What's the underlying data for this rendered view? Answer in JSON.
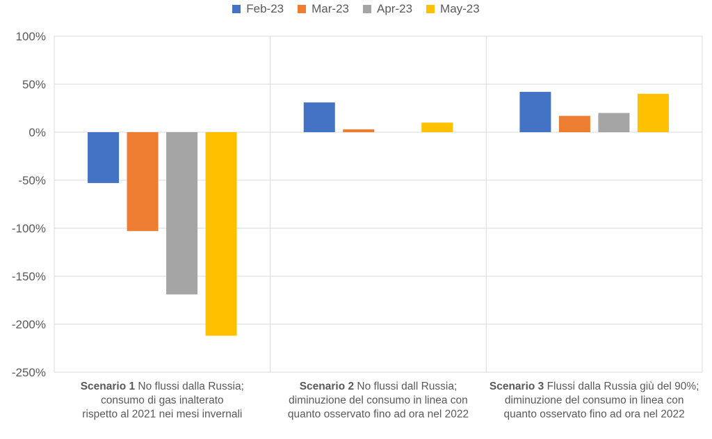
{
  "chart_data": {
    "type": "bar",
    "categories": [
      {
        "bold": "Scenario 1",
        "lines": [
          " No flussi dalla Russia;",
          "consumo di gas inalterato",
          "rispetto al 2021 nei mesi invernali"
        ]
      },
      {
        "bold": "Scenario 2",
        "lines": [
          " No flussi dall Russia;",
          "diminuzione del consumo in linea con",
          "quanto osservato fino ad ora nel 2022"
        ]
      },
      {
        "bold": "Scenario 3",
        "lines": [
          " Flussi dalla Russia giù del 90%;",
          "diminuzione del consumo in linea con",
          "quanto osservato fino ad ora nel 2022"
        ]
      }
    ],
    "series": [
      {
        "name": "Feb-23",
        "color": "#4472C4",
        "values": [
          -53,
          31,
          42
        ]
      },
      {
        "name": "Mar-23",
        "color": "#ED7D31",
        "values": [
          -103,
          3,
          17
        ]
      },
      {
        "name": "Apr-23",
        "color": "#A5A5A5",
        "values": [
          -169,
          0,
          20
        ]
      },
      {
        "name": "May-23",
        "color": "#FFC000",
        "values": [
          -212,
          10,
          40
        ]
      }
    ],
    "ylim": [
      -250,
      100
    ],
    "yticks": [
      100,
      50,
      0,
      -50,
      -100,
      -150,
      -200,
      -250
    ],
    "ytick_labels": [
      "100%",
      "50%",
      "0%",
      "-50%",
      "-100%",
      "-150%",
      "-200%",
      "-250%"
    ],
    "grid": true,
    "legend_position": "top-center"
  }
}
